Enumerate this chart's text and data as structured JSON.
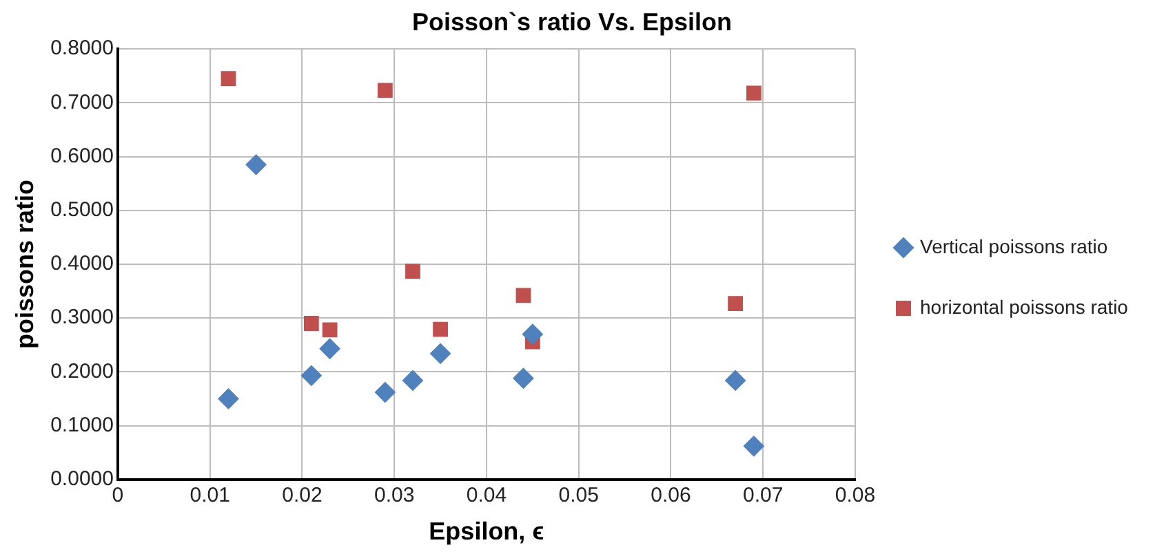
{
  "chart_data": {
    "type": "scatter",
    "title": "Poisson`s ratio Vs. Epsilon",
    "xlabel": "Epsilon, ϵ",
    "ylabel": "poissons ratio",
    "xlim": [
      0,
      0.08
    ],
    "xticks": [
      0,
      0.01,
      0.02,
      0.03,
      0.04,
      0.05,
      0.06,
      0.07,
      0.08
    ],
    "ylim": [
      0,
      0.8
    ],
    "yticks": [
      {
        "value": 0,
        "label": "0.0000"
      },
      {
        "value": 0.1,
        "label": "0.1000"
      },
      {
        "value": 0.2,
        "label": "0.2000"
      },
      {
        "value": 0.3,
        "label": "0.3000"
      },
      {
        "value": 0.4,
        "label": "0.4000"
      },
      {
        "value": 0.5,
        "label": "0.5000"
      },
      {
        "value": 0.6,
        "label": "0.6000"
      },
      {
        "value": 0.7,
        "label": "0.7000"
      },
      {
        "value": 0.8,
        "label": "0.8000"
      }
    ],
    "grid": true,
    "legend": "right",
    "series": [
      {
        "name": "Vertical poissons ratio",
        "color": "#4f81bd",
        "marker": "diamond",
        "x": [
          0.012,
          0.015,
          0.021,
          0.023,
          0.029,
          0.032,
          0.035,
          0.044,
          0.045,
          0.067,
          0.069
        ],
        "values": [
          0.15,
          0.585,
          0.193,
          0.243,
          0.162,
          0.184,
          0.234,
          0.188,
          0.27,
          0.184,
          0.062
        ]
      },
      {
        "name": "horizontal poissons ratio",
        "color": "#c0504d",
        "marker": "square",
        "x": [
          0.012,
          0.021,
          0.023,
          0.029,
          0.032,
          0.035,
          0.044,
          0.045,
          0.067,
          0.069
        ],
        "values": [
          0.745,
          0.29,
          0.278,
          0.723,
          0.387,
          0.279,
          0.342,
          0.256,
          0.327,
          0.718
        ]
      }
    ]
  }
}
